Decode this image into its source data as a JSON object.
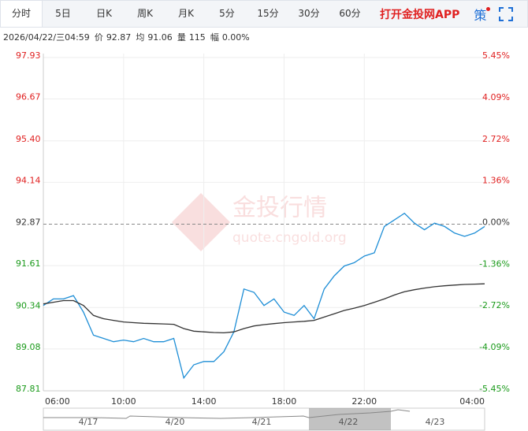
{
  "tabs": [
    "分时",
    "5日",
    "日K",
    "周K",
    "月K",
    "5分",
    "15分",
    "30分",
    "60分"
  ],
  "app_link": "打开金投网APP",
  "strategy": "策",
  "info": {
    "datetime": "2026/04/22/三04:59",
    "items": [
      {
        "label": "价",
        "value": "92.87"
      },
      {
        "label": "均",
        "value": "91.06"
      },
      {
        "label": "量",
        "value": "115"
      },
      {
        "label": "幅",
        "value": "0.00%"
      }
    ]
  },
  "watermark": {
    "title": "金投行情",
    "url": "quote.cngold.org"
  },
  "navigator": {
    "dates": [
      "4/17",
      "4/20",
      "4/21",
      "4/22",
      "4/23"
    ]
  },
  "chart_data": {
    "type": "line",
    "categories": [
      "06:00",
      null,
      null,
      null,
      null,
      null,
      null,
      null,
      "10:00",
      null,
      null,
      null,
      null,
      null,
      null,
      null,
      "14:00",
      null,
      null,
      null,
      null,
      null,
      null,
      null,
      "18:00",
      null,
      null,
      null,
      null,
      null,
      null,
      null,
      "22:00",
      null,
      null,
      null,
      null,
      null,
      null,
      null,
      null,
      null,
      null,
      null,
      "04:00"
    ],
    "series": [
      {
        "name": "价",
        "color": "#1e8ed6",
        "values": [
          90.4,
          90.6,
          90.6,
          90.7,
          90.2,
          89.5,
          89.4,
          89.3,
          89.35,
          89.3,
          89.4,
          89.3,
          89.3,
          89.4,
          88.2,
          88.6,
          88.7,
          88.7,
          89.0,
          89.6,
          90.9,
          90.8,
          90.4,
          90.6,
          90.2,
          90.1,
          90.4,
          90.0,
          90.9,
          91.3,
          91.6,
          91.7,
          91.9,
          92.0,
          92.8,
          93.0,
          93.2,
          92.9,
          92.7,
          92.9,
          92.8,
          92.6,
          92.5,
          92.6,
          92.8
        ]
      },
      {
        "name": "均",
        "color": "#333333",
        "values": [
          90.45,
          90.5,
          90.55,
          90.55,
          90.4,
          90.1,
          90.0,
          89.95,
          89.9,
          89.88,
          89.86,
          89.85,
          89.84,
          89.83,
          89.7,
          89.62,
          89.6,
          89.58,
          89.57,
          89.6,
          89.7,
          89.78,
          89.82,
          89.85,
          89.88,
          89.9,
          89.92,
          89.95,
          90.05,
          90.15,
          90.25,
          90.32,
          90.4,
          90.5,
          90.6,
          90.72,
          90.82,
          90.88,
          90.93,
          90.97,
          91.0,
          91.02,
          91.04,
          91.05,
          91.06
        ]
      }
    ],
    "baseline": 92.87,
    "up_color": "#e02020",
    "down_color": "#1a9a1a",
    "ylim": [
      87.81,
      97.93
    ],
    "yticks": [
      87.81,
      89.08,
      90.34,
      91.61,
      92.87,
      94.14,
      {
        "value": 95.4,
        "label": "95.40"
      },
      96.67,
      97.93
    ],
    "y2lim": [
      -5.45,
      5.45
    ],
    "y2ticks": [
      {
        "value": -5.45,
        "label": "-5.45%"
      },
      {
        "value": -4.09,
        "label": "-4.09%"
      },
      {
        "value": -2.72,
        "label": "-2.72%"
      },
      {
        "value": -1.36,
        "label": "-1.36%"
      },
      {
        "value": 0,
        "label": "0.00%"
      },
      {
        "value": 1.36,
        "label": "1.36%"
      },
      {
        "value": 2.72,
        "label": "2.72%"
      },
      {
        "value": 4.09,
        "label": "4.09%"
      },
      {
        "value": 5.45,
        "label": "5.45%"
      }
    ],
    "grid": true
  }
}
